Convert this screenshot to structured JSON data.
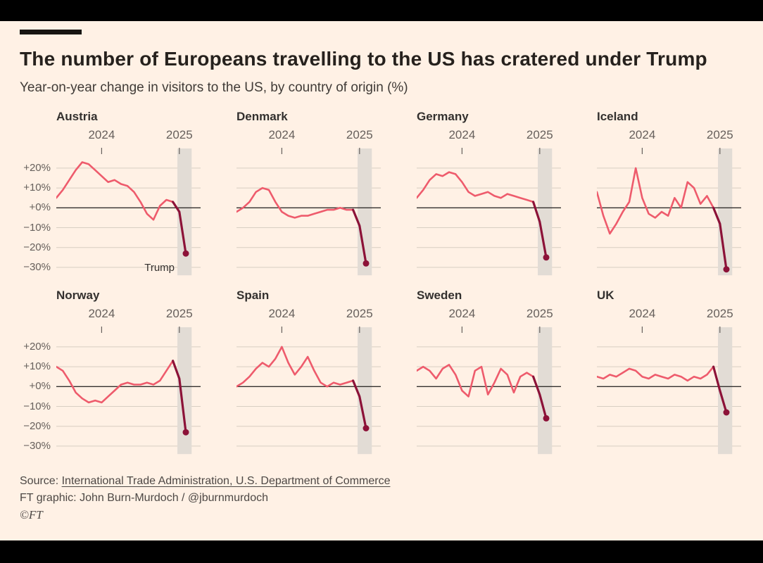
{
  "footer": {
    "source_prefix": "Source: ",
    "source_link": "International Trade Administration, U.S. Department of Commerce",
    "credit": "FT graphic: John Burn-Murdoch / @jburnmurdoch",
    "copyright": "©FT"
  },
  "chart_data": {
    "type": "line",
    "title": "The number of Europeans travelling to the US has cratered under Trump",
    "subtitle": "Year-on-year change in visitors to the US, by country of origin (%)",
    "x_start": "2023-06",
    "x_step": "1 month",
    "x_ticks": [
      {
        "label": "2024",
        "index": 7
      },
      {
        "label": "2025",
        "index": 19
      }
    ],
    "ylim": [
      -36,
      26
    ],
    "yticks": [
      {
        "value": 20,
        "label": "+20%"
      },
      {
        "value": 10,
        "label": "+10%"
      },
      {
        "value": 0,
        "label": "+0%"
      },
      {
        "value": -10,
        "label": "−10%"
      },
      {
        "value": -20,
        "label": "−20%"
      },
      {
        "value": -30,
        "label": "−30%"
      }
    ],
    "grid": true,
    "legend": false,
    "highlight_band": {
      "from_index": 18.7,
      "to_index": 20.9
    },
    "colors": {
      "background": "#fff1e5",
      "line": "#ee5b6c",
      "trump_segment": "#8c1238",
      "band": "#e2dcd5",
      "grid": "#d8cec2",
      "zero_line": "#33302e",
      "axis_text": "#66605c"
    },
    "panels": [
      {
        "country": "Austria",
        "annotation": "Trump",
        "trump_from": 18,
        "values": [
          5,
          9,
          14,
          19,
          23,
          22,
          19,
          16,
          13,
          14,
          12,
          11,
          8,
          3,
          -3,
          -6,
          1,
          4,
          3,
          -2,
          -23
        ]
      },
      {
        "country": "Denmark",
        "trump_from": 18,
        "values": [
          -2,
          0,
          3,
          8,
          10,
          9,
          3,
          -2,
          -4,
          -5,
          -4,
          -4,
          -3,
          -2,
          -1,
          -1,
          0,
          -1,
          -1,
          -9,
          -28
        ]
      },
      {
        "country": "Germany",
        "trump_from": 18,
        "values": [
          5,
          9,
          14,
          17,
          16,
          18,
          17,
          13,
          8,
          6,
          7,
          8,
          6,
          5,
          7,
          6,
          5,
          4,
          3,
          -7,
          -25
        ]
      },
      {
        "country": "Iceland",
        "trump_from": 18,
        "values": [
          8,
          -4,
          -13,
          -8,
          -2,
          3,
          20,
          5,
          -3,
          -5,
          -2,
          -4,
          5,
          0,
          13,
          10,
          2,
          6,
          0,
          -8,
          -31
        ]
      },
      {
        "country": "Norway",
        "trump_from": 18,
        "values": [
          10,
          8,
          3,
          -3,
          -6,
          -8,
          -7,
          -8,
          -5,
          -2,
          1,
          2,
          1,
          1,
          2,
          1,
          3,
          8,
          13,
          4,
          -23
        ]
      },
      {
        "country": "Spain",
        "trump_from": 18,
        "values": [
          0,
          2,
          5,
          9,
          12,
          10,
          14,
          20,
          12,
          6,
          10,
          15,
          8,
          2,
          0,
          2,
          1,
          2,
          3,
          -5,
          -21
        ]
      },
      {
        "country": "Sweden",
        "trump_from": 18,
        "values": [
          8,
          10,
          8,
          4,
          9,
          11,
          6,
          -2,
          -5,
          8,
          10,
          -4,
          2,
          9,
          6,
          -3,
          5,
          7,
          5,
          -4,
          -16
        ]
      },
      {
        "country": "UK",
        "trump_from": 18,
        "values": [
          5,
          4,
          6,
          5,
          7,
          9,
          8,
          5,
          4,
          6,
          5,
          4,
          6,
          5,
          3,
          5,
          4,
          6,
          10,
          -2,
          -13
        ]
      }
    ]
  }
}
